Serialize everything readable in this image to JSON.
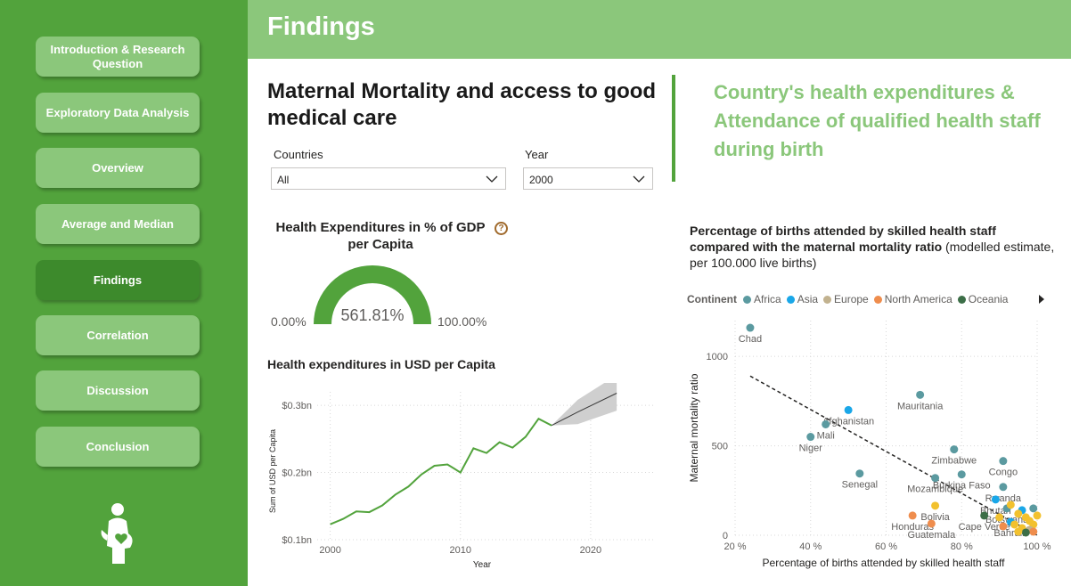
{
  "header": {
    "title": "Findings"
  },
  "nav": [
    {
      "label": "Introduction & Research Question",
      "active": false
    },
    {
      "label": "Exploratory Data Analysis",
      "active": false
    },
    {
      "label": "Overview",
      "active": false
    },
    {
      "label": "Average and Median",
      "active": false
    },
    {
      "label": "Findings",
      "active": true
    },
    {
      "label": "Correlation",
      "active": false
    },
    {
      "label": "Discussion",
      "active": false
    },
    {
      "label": "Conclusion",
      "active": false
    }
  ],
  "main_title": "Maternal Mortality and access to good medical care",
  "slicers": {
    "countries": {
      "label": "Countries",
      "value": "All"
    },
    "year": {
      "label": "Year",
      "value": "2000"
    }
  },
  "side_title": "Country's health expenditures & Attendance of qualified health staff during birth",
  "gauge": {
    "title": "Health Expenditures in % of GDP per Capita",
    "help": "?",
    "min": "0.00%",
    "max": "100.00%",
    "value_label": "561.81%",
    "fill_fraction": 1.0
  },
  "colors": {
    "accent": "#52a33c",
    "light_green": "#8bc77b",
    "africa": "#5b9aa0",
    "asia": "#1aa7e8",
    "europe": "#c2b28f",
    "north_america": "#ef8d4d",
    "oceania": "#3c6e47",
    "south_america": "#f2c12e"
  },
  "chart_data": [
    {
      "type": "line",
      "title": "Health expenditures in USD per Capita",
      "xlabel": "Year",
      "ylabel": "Sum of USD per Capita",
      "x_ticks": [
        "2000",
        "2010",
        "2020"
      ],
      "y_ticks": [
        "$0.1bn",
        "$0.2bn",
        "$0.3bn"
      ],
      "xlim": [
        1999,
        2025
      ],
      "ylim": [
        0.1,
        0.32
      ],
      "series": [
        {
          "x": [
            2000,
            2001,
            2002,
            2003,
            2004,
            2005,
            2006,
            2007,
            2008,
            2009,
            2010,
            2011,
            2012,
            2013,
            2014,
            2015,
            2016,
            2017
          ],
          "y": [
            0.123,
            0.131,
            0.142,
            0.141,
            0.151,
            0.167,
            0.179,
            0.197,
            0.21,
            0.212,
            0.2,
            0.236,
            0.229,
            0.245,
            0.237,
            0.253,
            0.28,
            0.27
          ]
        }
      ],
      "forecast": {
        "x": [
          2017,
          2019,
          2022
        ],
        "y": [
          0.27,
          0.29,
          0.318
        ],
        "lower": [
          0.27,
          0.272,
          0.292
        ],
        "upper": [
          0.27,
          0.308,
          0.345
        ]
      }
    },
    {
      "type": "scatter",
      "title_bold": "Percentage of births attended by skilled health staff compared with the maternal mortality ratio",
      "title_rest": " (modelled estimate, per 100.000 live births)",
      "xlabel": "Percentage of births attended by skilled health staff",
      "ylabel": "Maternal mortality ratio",
      "x_ticks": [
        "20 %",
        "40 %",
        "60 %",
        "80 %",
        "100 %"
      ],
      "y_ticks": [
        "0",
        "500",
        "1000"
      ],
      "xlim": [
        20,
        100
      ],
      "ylim": [
        0,
        1200
      ],
      "legend": {
        "title": "Continent",
        "entries": [
          {
            "name": "Africa",
            "color": "#5b9aa0"
          },
          {
            "name": "Asia",
            "color": "#1aa7e8"
          },
          {
            "name": "Europe",
            "color": "#c2b28f"
          },
          {
            "name": "North America",
            "color": "#ef8d4d"
          },
          {
            "name": "Oceania",
            "color": "#3c6e47"
          }
        ]
      },
      "trendline": {
        "x": [
          24,
          100
        ],
        "y": [
          890,
          0
        ]
      },
      "points": [
        {
          "label": "Chad",
          "x": 24,
          "y": 1160,
          "continent": "Africa"
        },
        {
          "label": "Afghanistan",
          "x": 50,
          "y": 700,
          "continent": "Asia"
        },
        {
          "label": "Mali",
          "x": 44,
          "y": 620,
          "continent": "Africa"
        },
        {
          "label": "Niger",
          "x": 40,
          "y": 550,
          "continent": "Africa"
        },
        {
          "label": "Mauritania",
          "x": 69,
          "y": 785,
          "continent": "Africa"
        },
        {
          "label": "Zimbabwe",
          "x": 78,
          "y": 480,
          "continent": "Africa"
        },
        {
          "label": "Senegal",
          "x": 53,
          "y": 345,
          "continent": "Africa"
        },
        {
          "label": "Mozambique",
          "x": 73,
          "y": 320,
          "continent": "Africa"
        },
        {
          "label": "Burkina Faso",
          "x": 80,
          "y": 340,
          "continent": "Africa"
        },
        {
          "label": "Congo",
          "x": 91,
          "y": 415,
          "continent": "Africa"
        },
        {
          "label": "Rwanda",
          "x": 91,
          "y": 270,
          "continent": "Africa"
        },
        {
          "label": "Bhutan",
          "x": 89,
          "y": 200,
          "continent": "Asia"
        },
        {
          "label": "Bolivia",
          "x": 73,
          "y": 165,
          "continent": "South America"
        },
        {
          "label": "Botswana",
          "x": 92,
          "y": 150,
          "continent": "Africa"
        },
        {
          "label": "Honduras",
          "x": 67,
          "y": 110,
          "continent": "North America"
        },
        {
          "label": "Guatemala",
          "x": 72,
          "y": 65,
          "continent": "North America"
        },
        {
          "label": "Bahrain",
          "x": 93,
          "y": 75,
          "continent": "Asia"
        },
        {
          "label": "Cape Verde",
          "x": 86,
          "y": 110,
          "continent": "Oceania"
        },
        {
          "label": "",
          "x": 99,
          "y": 150,
          "continent": "Africa"
        },
        {
          "label": "",
          "x": 96,
          "y": 140,
          "continent": "Asia"
        },
        {
          "label": "",
          "x": 95,
          "y": 120,
          "continent": "South America"
        },
        {
          "label": "",
          "x": 97,
          "y": 100,
          "continent": "South America"
        },
        {
          "label": "",
          "x": 98,
          "y": 80,
          "continent": "South America"
        },
        {
          "label": "",
          "x": 99,
          "y": 60,
          "continent": "South America"
        },
        {
          "label": "",
          "x": 94,
          "y": 60,
          "continent": "South America"
        },
        {
          "label": "",
          "x": 96,
          "y": 40,
          "continent": "South America"
        },
        {
          "label": "",
          "x": 98,
          "y": 30,
          "continent": "Europe"
        },
        {
          "label": "",
          "x": 99,
          "y": 20,
          "continent": "North America"
        },
        {
          "label": "",
          "x": 97,
          "y": 15,
          "continent": "Oceania"
        },
        {
          "label": "",
          "x": 91,
          "y": 50,
          "continent": "North America"
        },
        {
          "label": "",
          "x": 100,
          "y": 110,
          "continent": "South America"
        },
        {
          "label": "",
          "x": 93,
          "y": 170,
          "continent": "South America"
        },
        {
          "label": "",
          "x": 90,
          "y": 100,
          "continent": "South America"
        },
        {
          "label": "",
          "x": 95,
          "y": 20,
          "continent": "South America"
        }
      ]
    }
  ]
}
